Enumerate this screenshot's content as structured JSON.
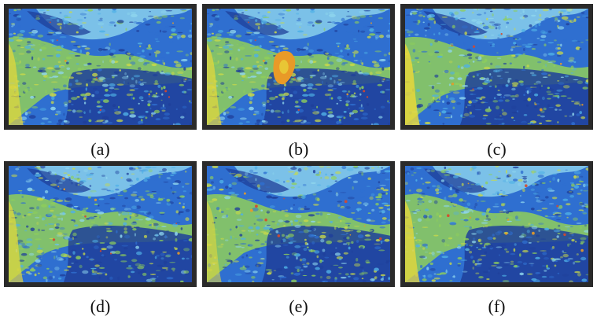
{
  "panels": [
    {
      "id": "a",
      "caption": "(a)",
      "has_blob": false,
      "seed": 11,
      "warmth": 0.55
    },
    {
      "id": "b",
      "caption": "(b)",
      "has_blob": true,
      "seed": 11,
      "warmth": 0.55
    },
    {
      "id": "c",
      "caption": "(c)",
      "has_blob": false,
      "seed": 23,
      "warmth": 0.8
    },
    {
      "id": "d",
      "caption": "(d)",
      "has_blob": false,
      "seed": 37,
      "warmth": 0.5
    },
    {
      "id": "e",
      "caption": "(e)",
      "has_blob": false,
      "seed": 41,
      "warmth": 0.3
    },
    {
      "id": "f",
      "caption": "(f)",
      "has_blob": false,
      "seed": 53,
      "warmth": 0.65
    }
  ],
  "colors": {
    "frame": "#2a2a2a",
    "deep_blue": "#1f3f9a",
    "blue": "#2f6fd0",
    "cyan": "#4fb0e6",
    "light_cyan": "#8fd6ee",
    "green": "#8fcf5a",
    "yellow_green": "#c8d84a",
    "yellow": "#e8d83a",
    "orange": "#e89a28",
    "red": "#d8482a"
  }
}
